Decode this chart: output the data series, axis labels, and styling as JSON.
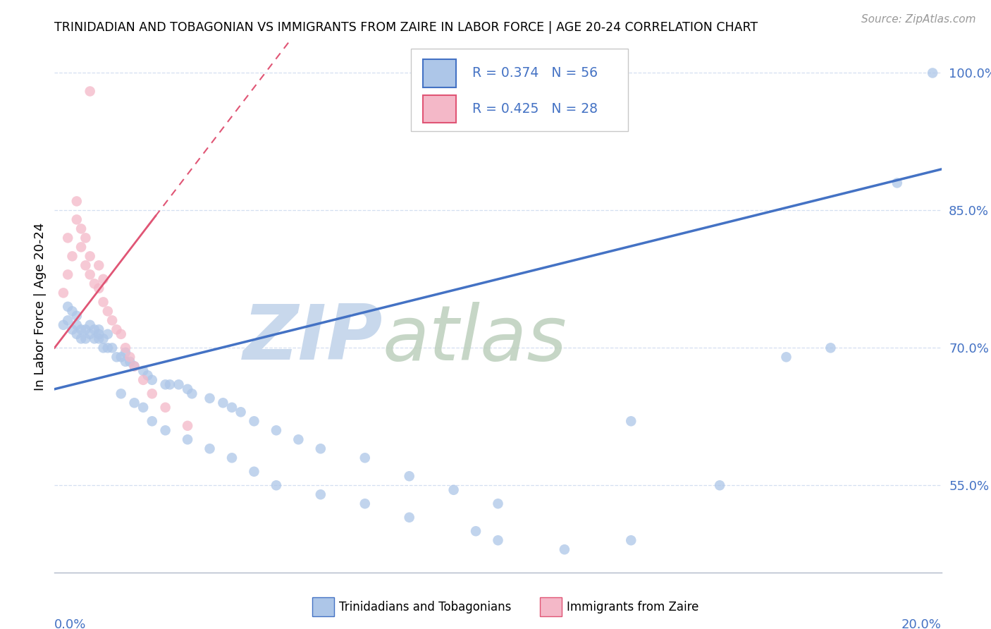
{
  "title": "TRINIDADIAN AND TOBAGONIAN VS IMMIGRANTS FROM ZAIRE IN LABOR FORCE | AGE 20-24 CORRELATION CHART",
  "source": "Source: ZipAtlas.com",
  "ylabel": "In Labor Force | Age 20-24",
  "series1_name": "Trinidadians and Tobagonians",
  "series1_color": "#adc6e8",
  "series1_line_color": "#4472c4",
  "series1_R": 0.374,
  "series1_N": 56,
  "series2_name": "Immigrants from Zaire",
  "series2_color": "#f4b8c8",
  "series2_line_color": "#e05575",
  "series2_R": 0.425,
  "series2_N": 28,
  "legend_color": "#4472c4",
  "watermark_zip_color": "#c8d8ec",
  "watermark_atlas_color": "#b8ccb8",
  "x_min": 0.0,
  "x_max": 0.2,
  "y_min": 0.455,
  "y_max": 1.035,
  "y_ticks": [
    0.55,
    0.7,
    0.85,
    1.0
  ],
  "y_tick_labels": [
    "55.0%",
    "70.0%",
    "85.0%",
    "100.0%"
  ],
  "background_color": "#ffffff",
  "grid_color": "#d4dff0",
  "blue_scatter_x": [
    0.002,
    0.003,
    0.003,
    0.004,
    0.004,
    0.005,
    0.005,
    0.005,
    0.006,
    0.006,
    0.007,
    0.007,
    0.008,
    0.008,
    0.009,
    0.009,
    0.01,
    0.01,
    0.01,
    0.011,
    0.011,
    0.012,
    0.012,
    0.013,
    0.014,
    0.015,
    0.016,
    0.016,
    0.017,
    0.018,
    0.02,
    0.021,
    0.022,
    0.025,
    0.026,
    0.028,
    0.03,
    0.031,
    0.035,
    0.038,
    0.04,
    0.042,
    0.045,
    0.05,
    0.055,
    0.06,
    0.07,
    0.08,
    0.09,
    0.1,
    0.13,
    0.15,
    0.165,
    0.175,
    0.19,
    0.198
  ],
  "blue_scatter_y": [
    0.725,
    0.73,
    0.745,
    0.72,
    0.74,
    0.715,
    0.725,
    0.735,
    0.71,
    0.72,
    0.71,
    0.72,
    0.715,
    0.725,
    0.71,
    0.72,
    0.71,
    0.715,
    0.72,
    0.7,
    0.71,
    0.7,
    0.715,
    0.7,
    0.69,
    0.69,
    0.685,
    0.695,
    0.685,
    0.68,
    0.675,
    0.67,
    0.665,
    0.66,
    0.66,
    0.66,
    0.655,
    0.65,
    0.645,
    0.64,
    0.635,
    0.63,
    0.62,
    0.61,
    0.6,
    0.59,
    0.58,
    0.56,
    0.545,
    0.53,
    0.62,
    0.55,
    0.69,
    0.7,
    0.88,
    1.0
  ],
  "blue_scatter_low_x": [
    0.015,
    0.018,
    0.02,
    0.022,
    0.025,
    0.03,
    0.035,
    0.04,
    0.045,
    0.05,
    0.06,
    0.07,
    0.08,
    0.095,
    0.1,
    0.115,
    0.13
  ],
  "blue_scatter_low_y": [
    0.65,
    0.64,
    0.635,
    0.62,
    0.61,
    0.6,
    0.59,
    0.58,
    0.565,
    0.55,
    0.54,
    0.53,
    0.515,
    0.5,
    0.49,
    0.48,
    0.49
  ],
  "pink_scatter_x": [
    0.002,
    0.003,
    0.003,
    0.004,
    0.005,
    0.005,
    0.006,
    0.006,
    0.007,
    0.007,
    0.008,
    0.008,
    0.009,
    0.01,
    0.01,
    0.011,
    0.011,
    0.012,
    0.013,
    0.014,
    0.015,
    0.016,
    0.017,
    0.018,
    0.02,
    0.022,
    0.025,
    0.03
  ],
  "pink_scatter_y": [
    0.76,
    0.78,
    0.82,
    0.8,
    0.84,
    0.86,
    0.81,
    0.83,
    0.79,
    0.82,
    0.78,
    0.8,
    0.77,
    0.765,
    0.79,
    0.75,
    0.775,
    0.74,
    0.73,
    0.72,
    0.715,
    0.7,
    0.69,
    0.68,
    0.665,
    0.65,
    0.635,
    0.615
  ],
  "pink_top_x": [
    0.008
  ],
  "pink_top_y": [
    0.98
  ],
  "blue_line_x0": 0.0,
  "blue_line_x1": 0.2,
  "blue_line_y0": 0.655,
  "blue_line_y1": 0.895,
  "pink_line_x0": 0.0,
  "pink_line_x1": 0.038,
  "pink_line_y0": 0.7,
  "pink_line_y1": 0.94
}
